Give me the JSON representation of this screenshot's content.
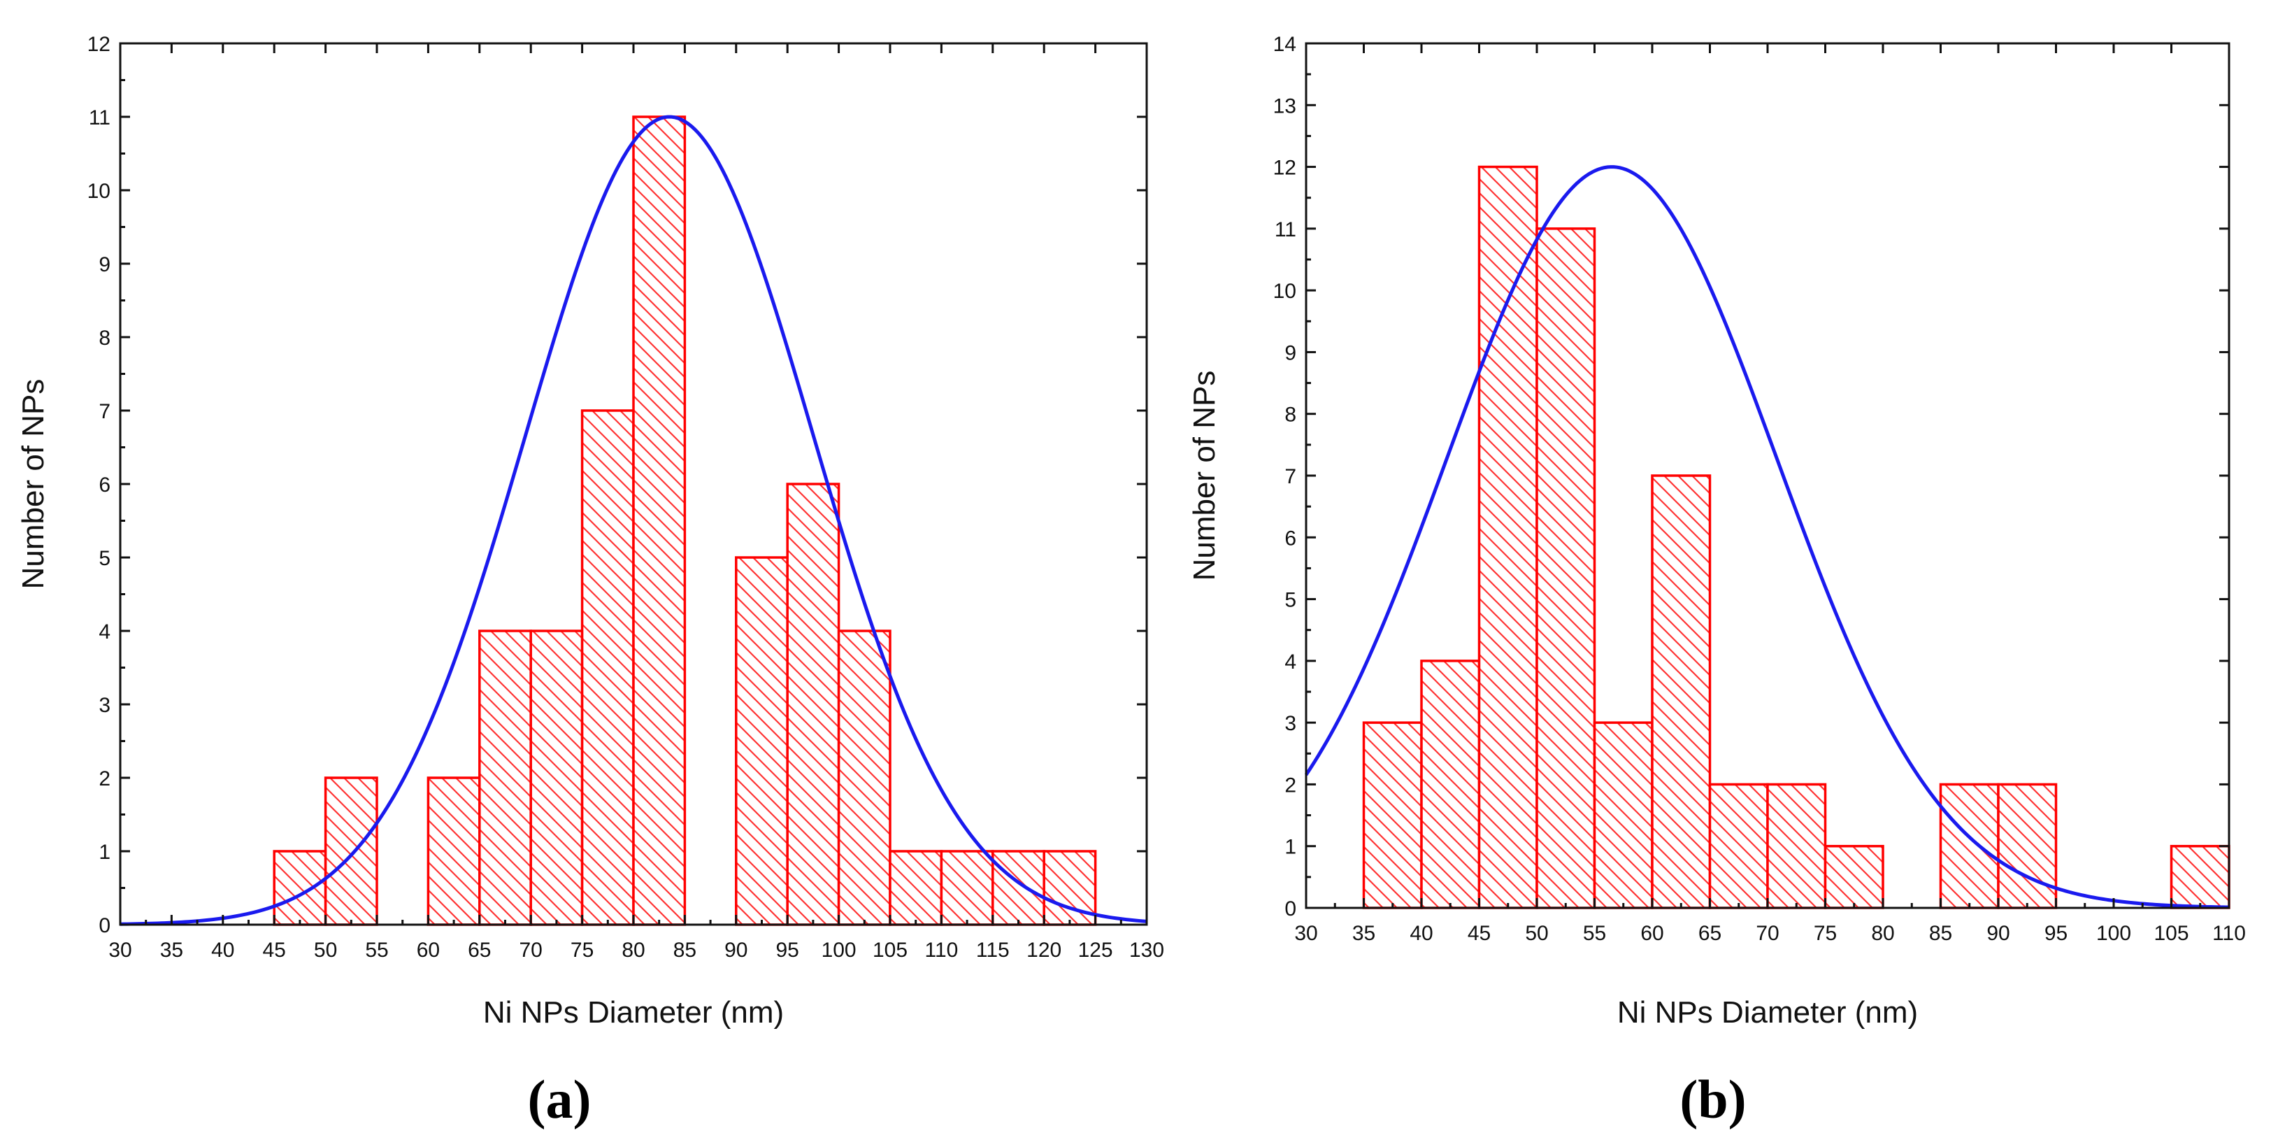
{
  "chart_data": [
    {
      "type": "bar",
      "subtype": "histogram",
      "panel_label": "(a)",
      "xlabel": "Ni NPs Diameter (nm)",
      "ylabel": "Number of NPs",
      "xlim": [
        30,
        130
      ],
      "ylim": [
        0,
        12
      ],
      "x_ticks": [
        "30",
        "35",
        "40",
        "45",
        "50",
        "55",
        "60",
        "65",
        "70",
        "75",
        "80",
        "85",
        "90",
        "95",
        "100",
        "105",
        "110",
        "115",
        "120",
        "125",
        "130"
      ],
      "y_ticks": [
        "0",
        "1",
        "2",
        "3",
        "4",
        "5",
        "6",
        "7",
        "8",
        "9",
        "10",
        "11",
        "12"
      ],
      "bins": [
        {
          "start": 45,
          "end": 50,
          "count": 1
        },
        {
          "start": 50,
          "end": 55,
          "count": 2
        },
        {
          "start": 60,
          "end": 65,
          "count": 2
        },
        {
          "start": 65,
          "end": 70,
          "count": 4
        },
        {
          "start": 70,
          "end": 75,
          "count": 4
        },
        {
          "start": 75,
          "end": 80,
          "count": 7
        },
        {
          "start": 80,
          "end": 85,
          "count": 11
        },
        {
          "start": 90,
          "end": 95,
          "count": 5
        },
        {
          "start": 95,
          "end": 100,
          "count": 6
        },
        {
          "start": 100,
          "end": 105,
          "count": 4
        },
        {
          "start": 105,
          "end": 110,
          "count": 1
        },
        {
          "start": 110,
          "end": 115,
          "count": 1
        },
        {
          "start": 115,
          "end": 120,
          "count": 1
        },
        {
          "start": 120,
          "end": 125,
          "count": 1
        }
      ],
      "fit": {
        "type": "gaussian",
        "peak_x": 83.5,
        "peak_y": 11.0,
        "sigma": 14.0,
        "color": "#1a1aee"
      },
      "bar_color": "#ff0000"
    },
    {
      "type": "bar",
      "subtype": "histogram",
      "panel_label": "(b)",
      "xlabel": "Ni NPs Diameter (nm)",
      "ylabel": "Number of NPs",
      "xlim": [
        30,
        110
      ],
      "ylim": [
        0,
        14
      ],
      "x_ticks": [
        "30",
        "35",
        "40",
        "45",
        "50",
        "55",
        "60",
        "65",
        "70",
        "75",
        "80",
        "85",
        "90",
        "95",
        "100",
        "105",
        "110"
      ],
      "y_ticks": [
        "0",
        "1",
        "2",
        "3",
        "4",
        "5",
        "6",
        "7",
        "8",
        "9",
        "10",
        "11",
        "12",
        "13",
        "14"
      ],
      "bins": [
        {
          "start": 35,
          "end": 40,
          "count": 3
        },
        {
          "start": 40,
          "end": 45,
          "count": 4
        },
        {
          "start": 45,
          "end": 50,
          "count": 12
        },
        {
          "start": 50,
          "end": 55,
          "count": 11
        },
        {
          "start": 55,
          "end": 60,
          "count": 3
        },
        {
          "start": 60,
          "end": 65,
          "count": 7
        },
        {
          "start": 65,
          "end": 70,
          "count": 2
        },
        {
          "start": 70,
          "end": 75,
          "count": 2
        },
        {
          "start": 75,
          "end": 80,
          "count": 1
        },
        {
          "start": 85,
          "end": 90,
          "count": 2
        },
        {
          "start": 90,
          "end": 95,
          "count": 2
        },
        {
          "start": 105,
          "end": 110,
          "count": 1
        }
      ],
      "fit": {
        "type": "gaussian",
        "peak_x": 56.5,
        "peak_y": 12.0,
        "sigma": 14.3,
        "color": "#1a1aee"
      },
      "bar_color": "#ff0000"
    }
  ]
}
